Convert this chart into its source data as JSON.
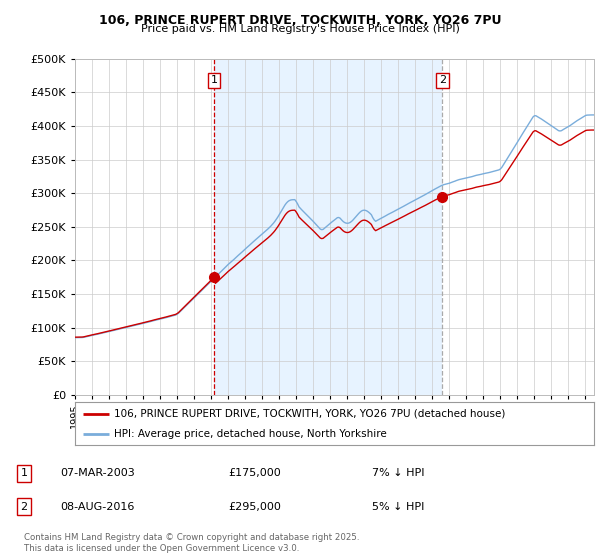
{
  "title_line1": "106, PRINCE RUPERT DRIVE, TOCKWITH, YORK, YO26 7PU",
  "title_line2": "Price paid vs. HM Land Registry's House Price Index (HPI)",
  "ylim": [
    0,
    500000
  ],
  "sale1_date": "07-MAR-2003",
  "sale1_price": 175000,
  "sale1_label": "7% ↓ HPI",
  "sale2_date": "08-AUG-2016",
  "sale2_price": 295000,
  "sale2_label": "5% ↓ HPI",
  "sale1_x": 2003.18,
  "sale2_x": 2016.58,
  "legend_line1": "106, PRINCE RUPERT DRIVE, TOCKWITH, YORK, YO26 7PU (detached house)",
  "legend_line2": "HPI: Average price, detached house, North Yorkshire",
  "footnote": "Contains HM Land Registry data © Crown copyright and database right 2025.\nThis data is licensed under the Open Government Licence v3.0.",
  "hpi_color": "#7aaddb",
  "price_color": "#cc0000",
  "sale_dot_color": "#cc0000",
  "vline1_color": "#cc0000",
  "vline2_color": "#aaaaaa",
  "shade_color": "#ddeeff",
  "background_color": "#ffffff",
  "grid_color": "#cccccc"
}
